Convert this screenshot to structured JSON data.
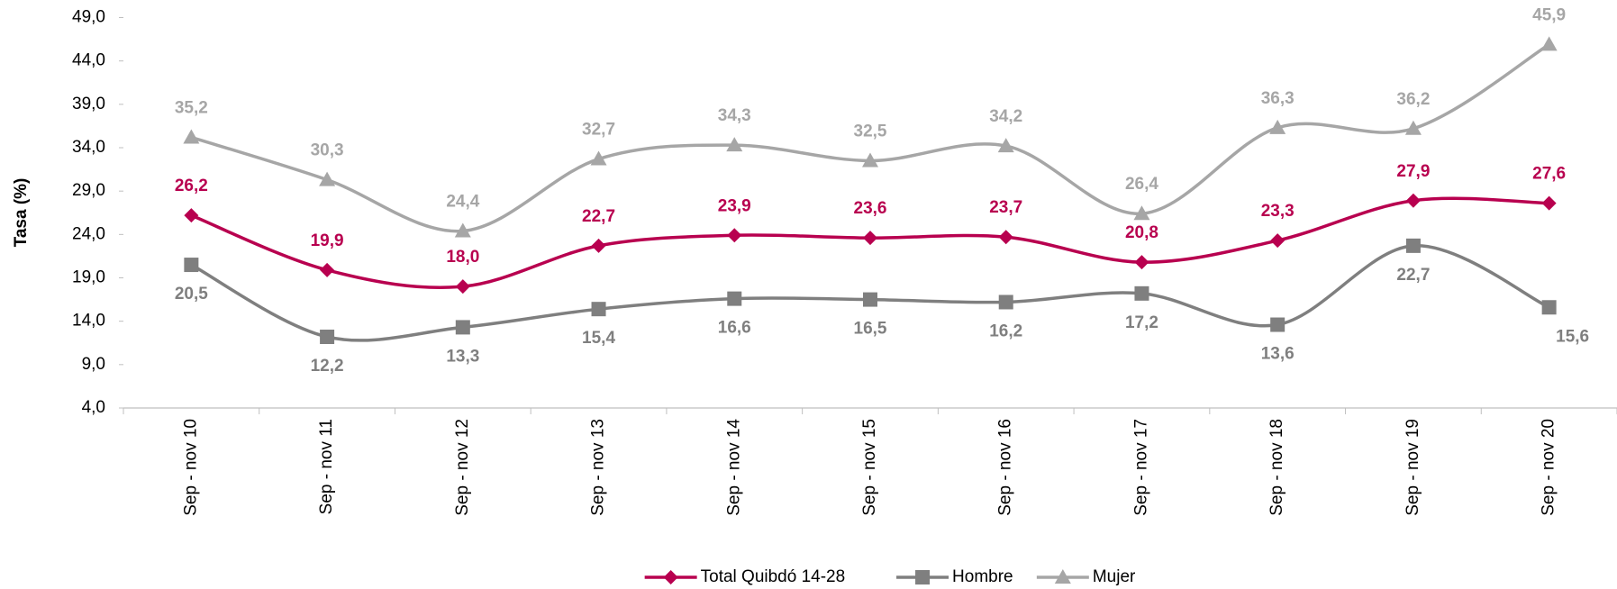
{
  "chart_data": {
    "type": "line",
    "y_label": "Tasa (%)",
    "categories": [
      "Sep - nov 10",
      "Sep - nov 11",
      "Sep - nov 12",
      "Sep - nov 13",
      "Sep - nov 14",
      "Sep - nov 15",
      "Sep - nov 16",
      "Sep - nov 17",
      "Sep - nov 18",
      "Sep - nov 19",
      "Sep - nov 20"
    ],
    "series": [
      {
        "name": "Total Quibdó 14-28",
        "color": "#b8004f",
        "marker": "diamond",
        "values": [
          26.2,
          19.9,
          18.0,
          22.7,
          23.9,
          23.6,
          23.7,
          20.8,
          23.3,
          27.9,
          27.6
        ],
        "value_labels": [
          "26,2",
          "19,9",
          "18,0",
          "22,7",
          "23,9",
          "23,6",
          "23,7",
          "20,8",
          "23,3",
          "27,9",
          "27,6"
        ]
      },
      {
        "name": "Hombre",
        "color": "#7f7f7f",
        "marker": "square",
        "values": [
          20.5,
          12.2,
          13.3,
          15.4,
          16.6,
          16.5,
          16.2,
          17.2,
          13.6,
          22.7,
          15.6
        ],
        "value_labels": [
          "20,5",
          "12,2",
          "13,3",
          "15,4",
          "16,6",
          "16,5",
          "16,2",
          "17,2",
          "13,6",
          "22,7",
          "15,6"
        ]
      },
      {
        "name": "Mujer",
        "color": "#a6a6a6",
        "marker": "triangle",
        "values": [
          35.2,
          30.3,
          24.4,
          32.7,
          34.3,
          32.5,
          34.2,
          26.4,
          36.3,
          36.2,
          45.9
        ],
        "value_labels": [
          "35,2",
          "30,3",
          "24,4",
          "32,7",
          "34,3",
          "32,5",
          "34,2",
          "26,4",
          "36,3",
          "36,2",
          "45,9"
        ]
      }
    ],
    "ylim": [
      4,
      49
    ],
    "yticks": [
      {
        "value": 4,
        "label": "4,0"
      },
      {
        "value": 9,
        "label": "9,0"
      },
      {
        "value": 14,
        "label": "14,0"
      },
      {
        "value": 19,
        "label": "19,0"
      },
      {
        "value": 24,
        "label": "24,0"
      },
      {
        "value": 29,
        "label": "29,0"
      },
      {
        "value": 34,
        "label": "34,0"
      },
      {
        "value": 39,
        "label": "39,0"
      },
      {
        "value": 44,
        "label": "44,0"
      },
      {
        "value": 49,
        "label": "49,0"
      }
    ],
    "grid": false,
    "smooth": true,
    "legend": "bottom"
  }
}
